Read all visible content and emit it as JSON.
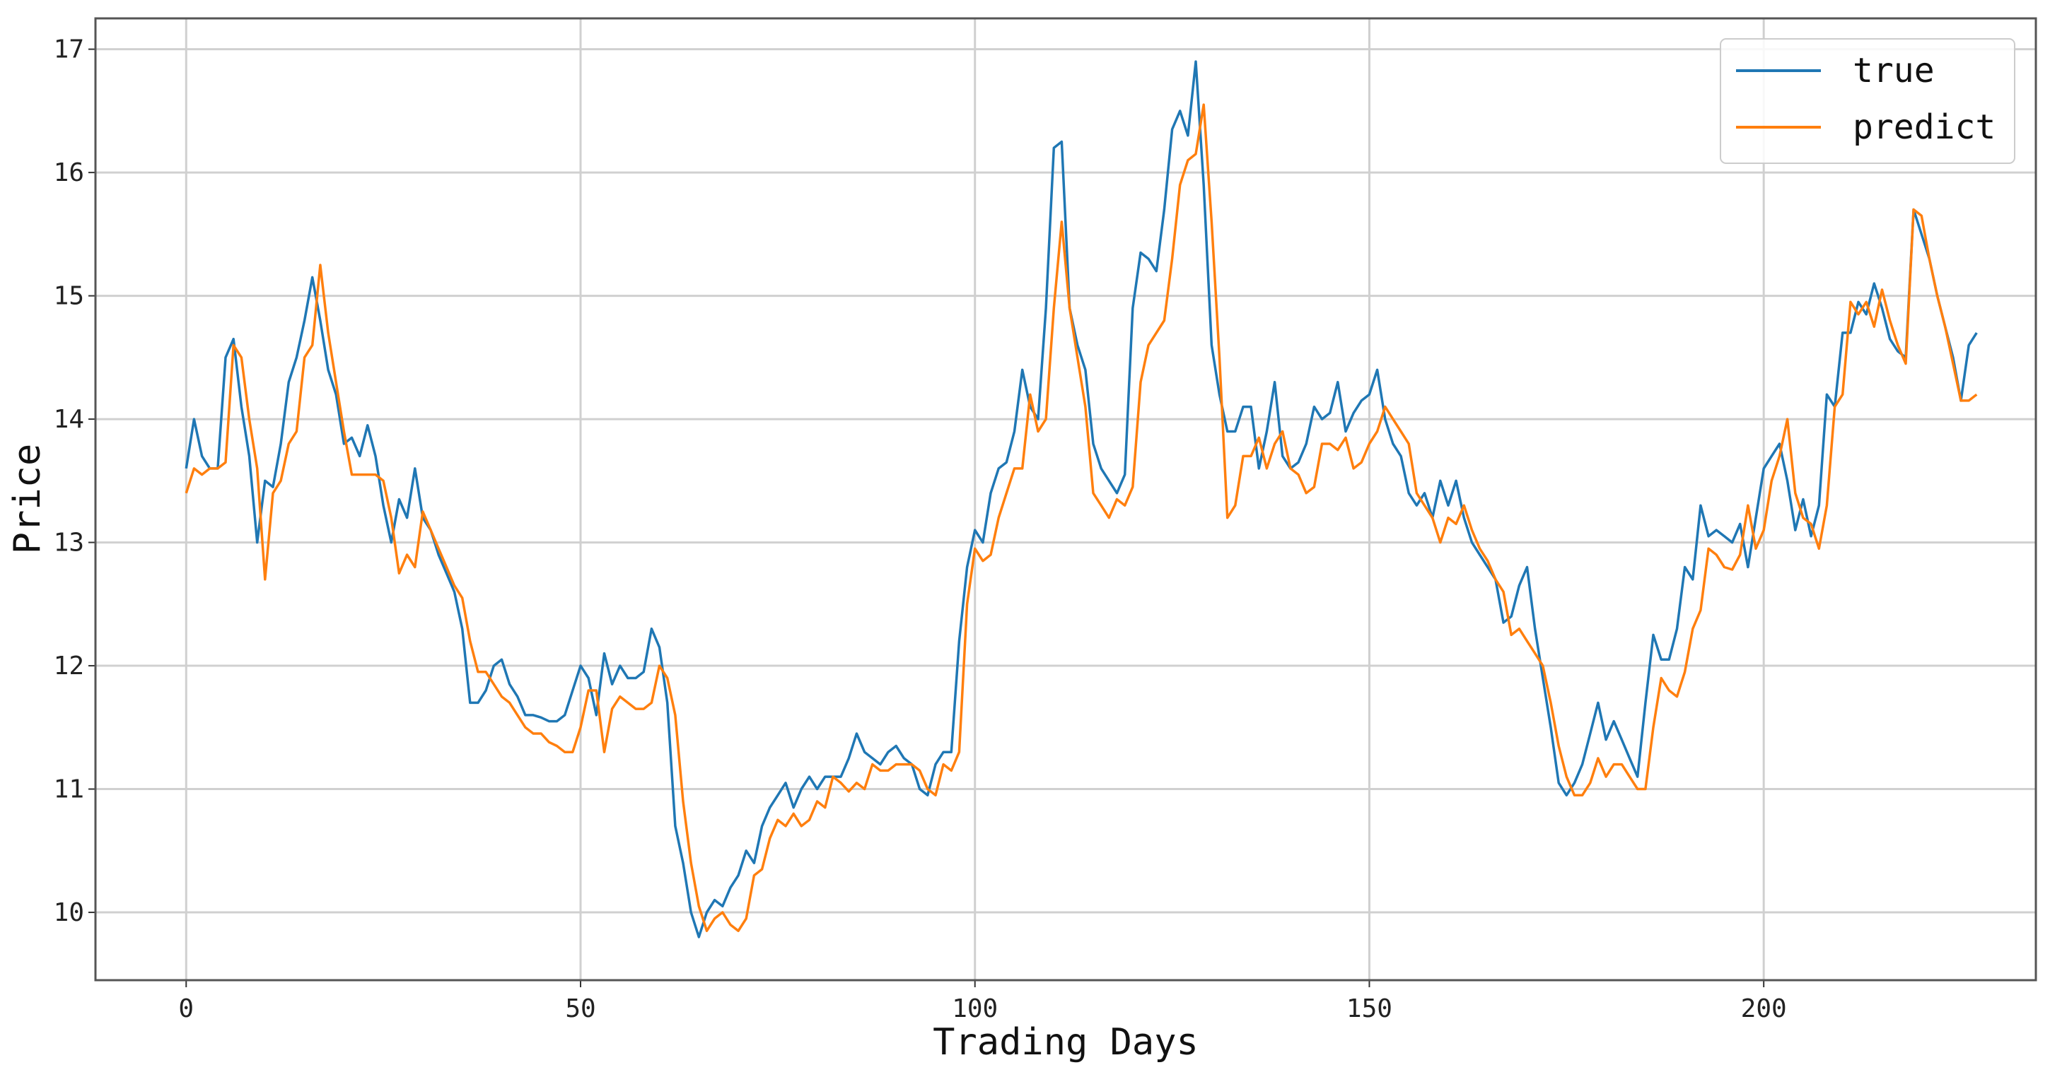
{
  "chart_data": {
    "type": "line",
    "title": "",
    "xlabel": "Trading Days",
    "ylabel": "Price",
    "xlim": [
      -11.5,
      234.5
    ],
    "ylim": [
      9.45,
      17.25
    ],
    "xticks": [
      0,
      50,
      100,
      150,
      200
    ],
    "yticks": [
      10,
      11,
      12,
      13,
      14,
      15,
      16,
      17
    ],
    "grid": true,
    "legend_position": "top-right",
    "series": [
      {
        "name": "true",
        "color": "#1f77b4",
        "values": [
          13.6,
          14.0,
          13.7,
          13.6,
          13.6,
          14.5,
          14.65,
          14.1,
          13.7,
          13.0,
          13.5,
          13.45,
          13.8,
          14.3,
          14.5,
          14.8,
          15.15,
          14.8,
          14.4,
          14.2,
          13.8,
          13.85,
          13.7,
          13.95,
          13.7,
          13.3,
          13.0,
          13.35,
          13.2,
          13.6,
          13.2,
          13.1,
          12.9,
          12.75,
          12.6,
          12.3,
          11.7,
          11.7,
          11.8,
          12.0,
          12.05,
          11.85,
          11.75,
          11.6,
          11.6,
          11.58,
          11.55,
          11.55,
          11.6,
          11.8,
          12.0,
          11.9,
          11.6,
          12.1,
          11.85,
          12.0,
          11.9,
          11.9,
          11.95,
          12.3,
          12.15,
          11.7,
          10.7,
          10.4,
          10.0,
          9.8,
          10.0,
          10.1,
          10.05,
          10.2,
          10.3,
          10.5,
          10.4,
          10.7,
          10.85,
          10.95,
          11.05,
          10.85,
          11.0,
          11.1,
          11.0,
          11.1,
          11.1,
          11.1,
          11.25,
          11.45,
          11.3,
          11.25,
          11.2,
          11.3,
          11.35,
          11.25,
          11.2,
          11.0,
          10.95,
          11.2,
          11.3,
          11.3,
          12.2,
          12.8,
          13.1,
          13.0,
          13.4,
          13.6,
          13.65,
          13.9,
          14.4,
          14.1,
          14.0,
          14.9,
          16.2,
          16.25,
          14.9,
          14.6,
          14.4,
          13.8,
          13.6,
          13.5,
          13.4,
          13.55,
          14.9,
          15.35,
          15.3,
          15.2,
          15.7,
          16.35,
          16.5,
          16.3,
          16.9,
          15.9,
          14.6,
          14.2,
          13.9,
          13.9,
          14.1,
          14.1,
          13.6,
          13.9,
          14.3,
          13.7,
          13.6,
          13.65,
          13.8,
          14.1,
          14.0,
          14.05,
          14.3,
          13.9,
          14.05,
          14.15,
          14.2,
          14.4,
          14.0,
          13.8,
          13.7,
          13.4,
          13.3,
          13.4,
          13.2,
          13.5,
          13.3,
          13.5,
          13.2,
          13.0,
          12.9,
          12.8,
          12.7,
          12.35,
          12.4,
          12.65,
          12.8,
          12.3,
          11.9,
          11.5,
          11.05,
          10.95,
          11.05,
          11.2,
          11.45,
          11.7,
          11.4,
          11.55,
          11.4,
          11.25,
          11.1,
          11.7,
          12.25,
          12.05,
          12.05,
          12.3,
          12.8,
          12.7,
          13.3,
          13.05,
          13.1,
          13.05,
          13.0,
          13.15,
          12.8,
          13.2,
          13.6,
          13.7,
          13.8,
          13.5,
          13.1,
          13.35,
          13.05,
          13.3,
          14.2,
          14.1,
          14.7,
          14.7,
          14.95,
          14.85,
          15.1,
          14.9,
          14.65,
          14.55,
          14.5,
          15.7,
          15.5,
          15.3,
          15.0,
          14.75,
          14.5,
          14.15,
          14.6,
          14.7
        ]
      },
      {
        "name": "predict",
        "color": "#ff7f0e",
        "values": [
          13.4,
          13.6,
          13.55,
          13.6,
          13.6,
          13.65,
          14.6,
          14.5,
          14.0,
          13.6,
          12.7,
          13.4,
          13.5,
          13.8,
          13.9,
          14.5,
          14.6,
          15.25,
          14.7,
          14.3,
          13.9,
          13.55,
          13.55,
          13.55,
          13.55,
          13.5,
          13.2,
          12.75,
          12.9,
          12.8,
          13.25,
          13.1,
          12.95,
          12.8,
          12.65,
          12.55,
          12.2,
          11.95,
          11.95,
          11.85,
          11.75,
          11.7,
          11.6,
          11.5,
          11.45,
          11.45,
          11.38,
          11.35,
          11.3,
          11.3,
          11.5,
          11.8,
          11.8,
          11.3,
          11.65,
          11.75,
          11.7,
          11.65,
          11.65,
          11.7,
          12.0,
          11.9,
          11.6,
          10.9,
          10.4,
          10.05,
          9.85,
          9.95,
          10.0,
          9.9,
          9.85,
          9.95,
          10.3,
          10.35,
          10.6,
          10.75,
          10.7,
          10.8,
          10.7,
          10.75,
          10.9,
          10.85,
          11.1,
          11.05,
          10.98,
          11.05,
          11.0,
          11.2,
          11.15,
          11.15,
          11.2,
          11.2,
          11.2,
          11.15,
          11.0,
          10.95,
          11.2,
          11.15,
          11.3,
          12.5,
          12.95,
          12.85,
          12.9,
          13.2,
          13.4,
          13.6,
          13.6,
          14.2,
          13.9,
          14.0,
          14.9,
          15.6,
          14.9,
          14.5,
          14.1,
          13.4,
          13.3,
          13.2,
          13.35,
          13.3,
          13.45,
          14.3,
          14.6,
          14.7,
          14.8,
          15.3,
          15.9,
          16.1,
          16.15,
          16.55,
          15.6,
          14.5,
          13.2,
          13.3,
          13.7,
          13.7,
          13.85,
          13.6,
          13.8,
          13.9,
          13.6,
          13.55,
          13.4,
          13.45,
          13.8,
          13.8,
          13.75,
          13.85,
          13.6,
          13.65,
          13.8,
          13.9,
          14.1,
          14.0,
          13.9,
          13.8,
          13.4,
          13.3,
          13.2,
          13.0,
          13.2,
          13.15,
          13.3,
          13.1,
          12.95,
          12.85,
          12.7,
          12.6,
          12.25,
          12.3,
          12.2,
          12.1,
          12.0,
          11.7,
          11.35,
          11.1,
          10.95,
          10.95,
          11.05,
          11.25,
          11.1,
          11.2,
          11.2,
          11.1,
          11.0,
          11.0,
          11.5,
          11.9,
          11.8,
          11.75,
          11.95,
          12.3,
          12.45,
          12.95,
          12.9,
          12.8,
          12.78,
          12.9,
          13.3,
          12.95,
          13.1,
          13.5,
          13.7,
          14.0,
          13.4,
          13.2,
          13.15,
          12.95,
          13.3,
          14.1,
          14.2,
          14.95,
          14.85,
          14.95,
          14.75,
          15.05,
          14.8,
          14.6,
          14.45,
          15.7,
          15.65,
          15.3,
          15.0,
          14.75,
          14.45,
          14.15,
          14.15,
          14.2
        ]
      }
    ]
  }
}
